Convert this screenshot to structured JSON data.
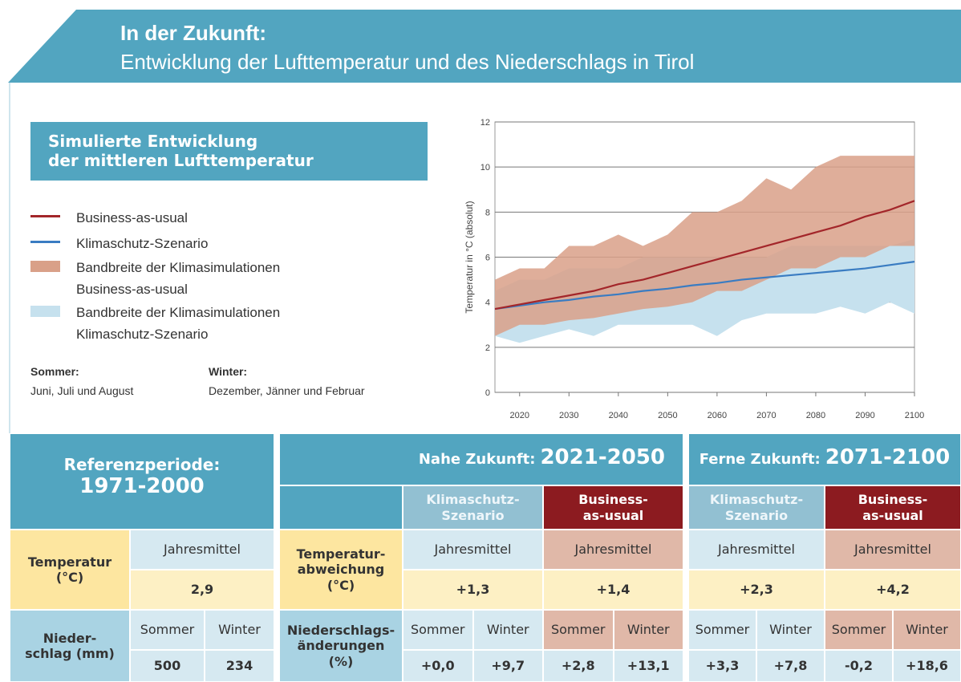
{
  "header": {
    "title": "In der Zukunft:",
    "subtitle": "Entwicklung der Lufttemperatur und des Niederschlags in Tirol"
  },
  "legend_box": {
    "title_lines": [
      "Simulierte Entwicklung",
      "der mittleren Lufttemperatur"
    ]
  },
  "notes": [
    {
      "label": "Sommer:",
      "text": "Juni, Juli und August"
    },
    {
      "label": "Winter:",
      "text": "Dezember, Jänner und Februar"
    }
  ],
  "chart_data": {
    "type": "line",
    "ylabel": "Temperatur in °C (absolut)",
    "x": [
      2015,
      2020,
      2025,
      2030,
      2035,
      2040,
      2045,
      2050,
      2055,
      2060,
      2065,
      2070,
      2075,
      2080,
      2085,
      2090,
      2095,
      2100
    ],
    "xlim": [
      2015,
      2100
    ],
    "xticks": [
      2020,
      2030,
      2040,
      2050,
      2060,
      2070,
      2080,
      2090,
      2100
    ],
    "ylim": [
      0,
      12
    ],
    "yticks": [
      0,
      2,
      4,
      6,
      8,
      10,
      12
    ],
    "grid": true,
    "series": [
      {
        "name": "Business-as-usual",
        "color": "#a3262a",
        "values": [
          3.7,
          3.9,
          4.1,
          4.3,
          4.5,
          4.8,
          5.0,
          5.3,
          5.6,
          5.9,
          6.2,
          6.5,
          6.8,
          7.1,
          7.4,
          7.8,
          8.1,
          8.5
        ]
      },
      {
        "name": "Klimaschutz-Szenario",
        "color": "#3a7cc2",
        "values": [
          3.7,
          3.85,
          4.0,
          4.1,
          4.25,
          4.35,
          4.5,
          4.6,
          4.75,
          4.85,
          5.0,
          5.1,
          5.2,
          5.3,
          5.4,
          5.5,
          5.65,
          5.8
        ]
      }
    ],
    "bands": [
      {
        "name": "Bandbreite der Klimasimulationen Business-as-usual",
        "color": "#d9a088",
        "low": [
          2.5,
          3.0,
          3.0,
          3.2,
          3.3,
          3.5,
          3.7,
          3.8,
          4.0,
          4.5,
          4.5,
          5.0,
          5.5,
          5.5,
          6.0,
          6.0,
          6.5,
          6.5
        ],
        "high": [
          5.0,
          5.5,
          5.5,
          6.5,
          6.5,
          7.0,
          6.5,
          7.0,
          8.0,
          8.0,
          8.5,
          9.5,
          9.0,
          10.0,
          10.5,
          10.5,
          10.5,
          10.5
        ]
      },
      {
        "name": "Bandbreite der Klimasimulationen Klimaschutz-Szenario",
        "color": "#c6e1ee",
        "low": [
          2.5,
          2.2,
          2.5,
          2.8,
          2.5,
          3.0,
          3.0,
          3.0,
          3.0,
          2.5,
          3.2,
          3.5,
          3.5,
          3.5,
          3.8,
          3.5,
          4.0,
          3.5
        ],
        "high": [
          4.5,
          5.0,
          5.0,
          5.5,
          5.5,
          5.5,
          6.0,
          6.0,
          6.0,
          6.0,
          6.0,
          6.0,
          6.5,
          6.5,
          6.5,
          6.5,
          6.5,
          6.8
        ]
      }
    ]
  },
  "table": {
    "reference": {
      "title": "Referenzperiode:",
      "period": "1971-2000",
      "temperature_label": [
        "Temperatur",
        "(°C)"
      ],
      "annual_mean": "Jahresmittel",
      "temperature": "2,9",
      "precipitation_label": [
        "Nieder-",
        "schlag (mm)"
      ],
      "summer": "Sommer",
      "winter": "Winter",
      "precip_summer": "500",
      "precip_winter": "234"
    },
    "projections": [
      {
        "title": "Nahe Zukunft:",
        "period": "2021-2050",
        "temperature_label": [
          "Temperatur-",
          "abweichung",
          "(°C)"
        ],
        "precipitation_label": [
          "Niederschlags-",
          "änderungen",
          "(%)"
        ],
        "scenarios": [
          {
            "name": [
              "Klimaschutz-",
              "Szenario"
            ],
            "annual_mean": "Jahresmittel",
            "temperature": "+1,3",
            "summer": "Sommer",
            "winter": "Winter",
            "precip_summer": "+0,0",
            "precip_winter": "+9,7"
          },
          {
            "name": [
              "Business-",
              "as-usual"
            ],
            "annual_mean": "Jahresmittel",
            "temperature": "+1,4",
            "summer": "Sommer",
            "winter": "Winter",
            "precip_summer": "+2,8",
            "precip_winter": "+13,1"
          }
        ]
      },
      {
        "title": "Ferne Zukunft:",
        "period": "2071-2100",
        "scenarios": [
          {
            "name": [
              "Klimaschutz-",
              "Szenario"
            ],
            "annual_mean": "Jahresmittel",
            "temperature": "+2,3",
            "summer": "Sommer",
            "winter": "Winter",
            "precip_summer": "+3,3",
            "precip_winter": "+7,8"
          },
          {
            "name": [
              "Business-",
              "as-usual"
            ],
            "annual_mean": "Jahresmittel",
            "temperature": "+4,2",
            "summer": "Sommer",
            "winter": "Winter",
            "precip_summer": "-0,2",
            "precip_winter": "+18,6"
          }
        ]
      }
    ]
  }
}
